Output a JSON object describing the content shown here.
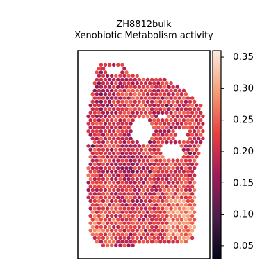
{
  "chart_data": {
    "type": "heatmap",
    "title_lines": [
      "ZH8812bulk",
      "Xenobiotic Metabolism activity"
    ],
    "colorbar": {
      "min": 0.03,
      "max": 0.36,
      "ticks": [
        0.05,
        0.1,
        0.15,
        0.2,
        0.25,
        0.3,
        0.35
      ],
      "tick_labels": [
        "0.05",
        "0.10",
        "0.15",
        "0.20",
        "0.25",
        "0.30",
        "0.35"
      ],
      "colormap": [
        "#03051a",
        "#4c1d4b",
        "#a11a5b",
        "#e83f3f",
        "#f69c73",
        "#faebdd"
      ]
    },
    "grid": false,
    "legend": "colorbar-right"
  }
}
